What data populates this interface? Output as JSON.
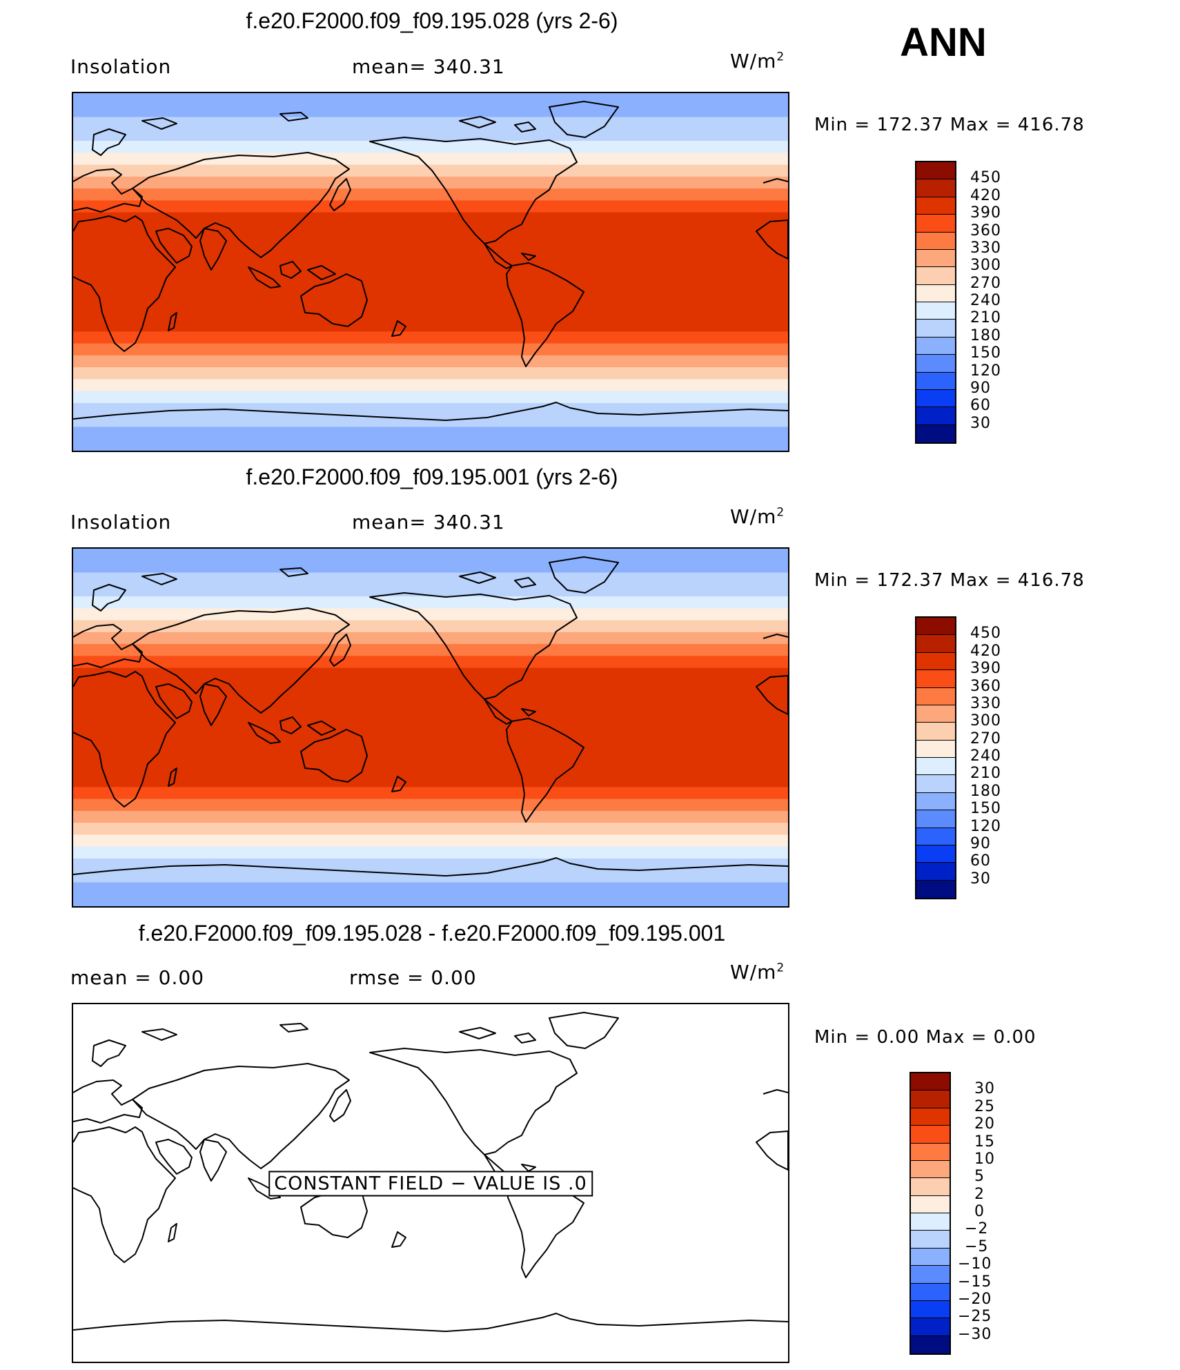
{
  "season": "ANN",
  "units_base": "W/m",
  "units_exp": "2",
  "panels": [
    {
      "title": "f.e20.F2000.f09_f09.195.028 (yrs 2-6)",
      "left_label": "Insolation",
      "center_label": "mean= 340.31",
      "minmax": "Min = 172.37 Max = 416.78",
      "colorbar_labels": [
        "450",
        "420",
        "390",
        "360",
        "330",
        "300",
        "270",
        "240",
        "210",
        "180",
        "150",
        "120",
        "90",
        "60",
        "30"
      ]
    },
    {
      "title": "f.e20.F2000.f09_f09.195.001 (yrs 2-6)",
      "left_label": "Insolation",
      "center_label": "mean= 340.31",
      "minmax": "Min = 172.37 Max = 416.78",
      "colorbar_labels": [
        "450",
        "420",
        "390",
        "360",
        "330",
        "300",
        "270",
        "240",
        "210",
        "180",
        "150",
        "120",
        "90",
        "60",
        "30"
      ]
    },
    {
      "title": "f.e20.F2000.f09_f09.195.028 - f.e20.F2000.f09_f09.195.001",
      "left_label": "mean =     0.00",
      "center_label": "rmse =     0.00",
      "minmax": "Min =     0.00 Max =     0.00",
      "constant_note": "CONSTANT FIELD - VALUE IS .0",
      "colorbar_labels": [
        "30",
        "25",
        "20",
        "15",
        "10",
        "5",
        "2",
        "0",
        "-2",
        "-5",
        "-10",
        "-15",
        "-20",
        "-25",
        "-30"
      ]
    }
  ],
  "colorbar_colors": [
    "#8c0c00",
    "#b82100",
    "#e03400",
    "#fa4e16",
    "#fd7a42",
    "#fda77c",
    "#fdcfb1",
    "#fdeedf",
    "#ddeeff",
    "#b9d3fd",
    "#8bb1fe",
    "#5c8bfd",
    "#2c63fd",
    "#0a3ef5",
    "#0021c8",
    "#000c82"
  ],
  "insolation_bands": [
    {
      "lat_top": 90,
      "lat_bottom": 78,
      "value": "150-180"
    },
    {
      "lat_top": 78,
      "lat_bottom": 66,
      "value": "180-210"
    },
    {
      "lat_top": 66,
      "lat_bottom": 60,
      "value": "210-240"
    },
    {
      "lat_top": 60,
      "lat_bottom": 54,
      "value": "240-270"
    },
    {
      "lat_top": 54,
      "lat_bottom": 48,
      "value": "270-300"
    },
    {
      "lat_top": 48,
      "lat_bottom": 42,
      "value": "300-330"
    },
    {
      "lat_top": 42,
      "lat_bottom": 36,
      "value": "330-360"
    },
    {
      "lat_top": 36,
      "lat_bottom": 30,
      "value": "360-390"
    },
    {
      "lat_top": 30,
      "lat_bottom": -30,
      "value": "390-420"
    },
    {
      "lat_top": -30,
      "lat_bottom": -36,
      "value": "360-390"
    },
    {
      "lat_top": -36,
      "lat_bottom": -42,
      "value": "330-360"
    },
    {
      "lat_top": -42,
      "lat_bottom": -48,
      "value": "300-330"
    },
    {
      "lat_top": -48,
      "lat_bottom": -54,
      "value": "270-300"
    },
    {
      "lat_top": -54,
      "lat_bottom": -60,
      "value": "240-270"
    },
    {
      "lat_top": -60,
      "lat_bottom": -66,
      "value": "210-240"
    },
    {
      "lat_top": -66,
      "lat_bottom": -78,
      "value": "180-210"
    },
    {
      "lat_top": -78,
      "lat_bottom": -90,
      "value": "150-180"
    }
  ]
}
